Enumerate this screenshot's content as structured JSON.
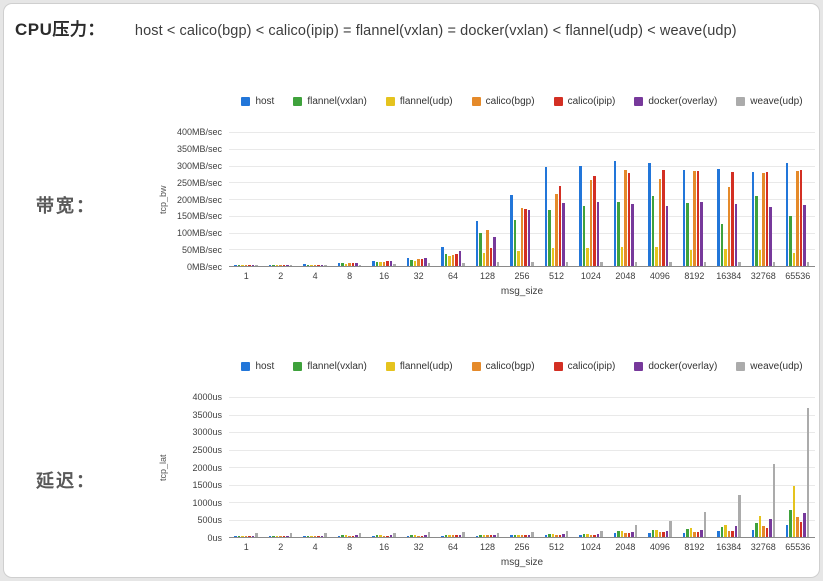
{
  "page": {
    "cpu_label": "CPU压力：",
    "cpu_expression": "host < calico(bgp) < calico(ipip) = flannel(vxlan) = docker(vxlan) < flannel(udp) < weave(udp)",
    "bandwidth_label": "带宽：",
    "latency_label": "延迟："
  },
  "colors": {
    "host": "#2276d9",
    "flannel_vxlan": "#3fa23c",
    "flannel_udp": "#e5c31e",
    "calico_bgp": "#e58a2a",
    "calico_ipip": "#d32f23",
    "docker_overlay": "#77399b",
    "weave_udp": "#ababab",
    "gridline": "#e9e9e9"
  },
  "chart_data": [
    {
      "type": "bar",
      "title": "",
      "xlabel": "msg_size",
      "ylabel": "tcp_bw",
      "y_unit": "MB/sec",
      "ylim": [
        0,
        400
      ],
      "y_tick_step": 50,
      "grid": true,
      "legend_position": "top",
      "y_tick_labels": [
        "400MB/sec",
        "350MB/sec",
        "300MB/sec",
        "250MB/sec",
        "200MB/sec",
        "150MB/sec",
        "100MB/sec",
        "50MB/sec",
        "0MB/sec"
      ],
      "categories": [
        "1",
        "2",
        "4",
        "8",
        "16",
        "32",
        "64",
        "128",
        "256",
        "512",
        "1024",
        "2048",
        "4096",
        "8192",
        "16384",
        "32768",
        "65536"
      ],
      "series": [
        {
          "name": "host",
          "color": "#2276d9",
          "values": [
            1,
            2,
            5,
            10,
            15,
            25,
            57,
            133,
            211,
            295,
            300,
            312,
            309,
            287,
            289,
            281,
            309
          ]
        },
        {
          "name": "flannel(vxlan)",
          "color": "#3fa23c",
          "values": [
            1,
            2,
            4,
            8,
            12,
            18,
            35,
            98,
            136,
            168,
            178,
            190,
            210,
            188,
            125,
            209,
            150
          ]
        },
        {
          "name": "flannel(udp)",
          "color": "#e5c31e",
          "values": [
            1,
            2,
            4,
            7,
            11,
            16,
            30,
            40,
            46,
            54,
            54,
            56,
            56,
            48,
            50,
            48,
            40
          ]
        },
        {
          "name": "calico(bgp)",
          "color": "#e58a2a",
          "values": [
            1,
            2,
            4,
            8,
            13,
            20,
            32,
            108,
            173,
            215,
            258,
            288,
            261,
            284,
            237,
            277,
            284
          ]
        },
        {
          "name": "calico(ipip)",
          "color": "#d32f23",
          "values": [
            1,
            2,
            4,
            9,
            14,
            22,
            36,
            53,
            170,
            240,
            270,
            279,
            286,
            284,
            282,
            281,
            286
          ]
        },
        {
          "name": "docker(overlay)",
          "color": "#77399b",
          "values": [
            1,
            2,
            4,
            9,
            14,
            24,
            45,
            88,
            166,
            188,
            192,
            186,
            180,
            190,
            186,
            176,
            183
          ]
        },
        {
          "name": "weave(udp)",
          "color": "#ababab",
          "values": [
            0.5,
            1,
            2,
            3,
            5,
            8,
            10,
            11,
            12,
            12,
            12,
            13,
            13,
            13,
            13,
            13,
            13
          ]
        }
      ]
    },
    {
      "type": "bar",
      "title": "",
      "xlabel": "msg_size",
      "ylabel": "tcp_lat",
      "y_unit": "us",
      "ylim": [
        0,
        4000
      ],
      "y_tick_step": 500,
      "grid": true,
      "legend_position": "top",
      "y_tick_labels": [
        "4000us",
        "3500us",
        "3000us",
        "2500us",
        "2000us",
        "1500us",
        "1000us",
        "500us",
        "0us"
      ],
      "categories": [
        "1",
        "2",
        "4",
        "8",
        "16",
        "32",
        "64",
        "128",
        "256",
        "512",
        "1024",
        "2048",
        "4096",
        "8192",
        "16384",
        "32768",
        "65536"
      ],
      "series": [
        {
          "name": "host",
          "color": "#2276d9",
          "values": [
            30,
            30,
            30,
            32,
            33,
            35,
            38,
            40,
            45,
            50,
            60,
            105,
            125,
            125,
            165,
            190,
            350
          ]
        },
        {
          "name": "flannel(vxlan)",
          "color": "#3fa23c",
          "values": [
            40,
            40,
            42,
            45,
            48,
            50,
            55,
            60,
            65,
            75,
            90,
            170,
            200,
            220,
            300,
            400,
            760
          ]
        },
        {
          "name": "flannel(udp)",
          "color": "#e5c31e",
          "values": [
            40,
            40,
            42,
            45,
            48,
            50,
            55,
            60,
            65,
            75,
            90,
            180,
            210,
            260,
            335,
            610,
            1470
          ]
        },
        {
          "name": "calico(bgp)",
          "color": "#e58a2a",
          "values": [
            35,
            35,
            36,
            38,
            40,
            42,
            45,
            50,
            55,
            60,
            70,
            120,
            135,
            145,
            180,
            305,
            570
          ]
        },
        {
          "name": "calico(ipip)",
          "color": "#d32f23",
          "values": [
            35,
            35,
            36,
            38,
            40,
            42,
            45,
            50,
            55,
            60,
            70,
            120,
            135,
            145,
            180,
            260,
            420
          ]
        },
        {
          "name": "docker(overlay)",
          "color": "#77399b",
          "values": [
            40,
            40,
            42,
            45,
            48,
            50,
            55,
            60,
            65,
            75,
            85,
            145,
            165,
            190,
            315,
            515,
            690
          ]
        },
        {
          "name": "weave(udp)",
          "color": "#ababab",
          "values": [
            110,
            110,
            115,
            120,
            125,
            130,
            135,
            120,
            150,
            165,
            175,
            330,
            470,
            720,
            1200,
            2080,
            3700
          ]
        }
      ]
    }
  ]
}
